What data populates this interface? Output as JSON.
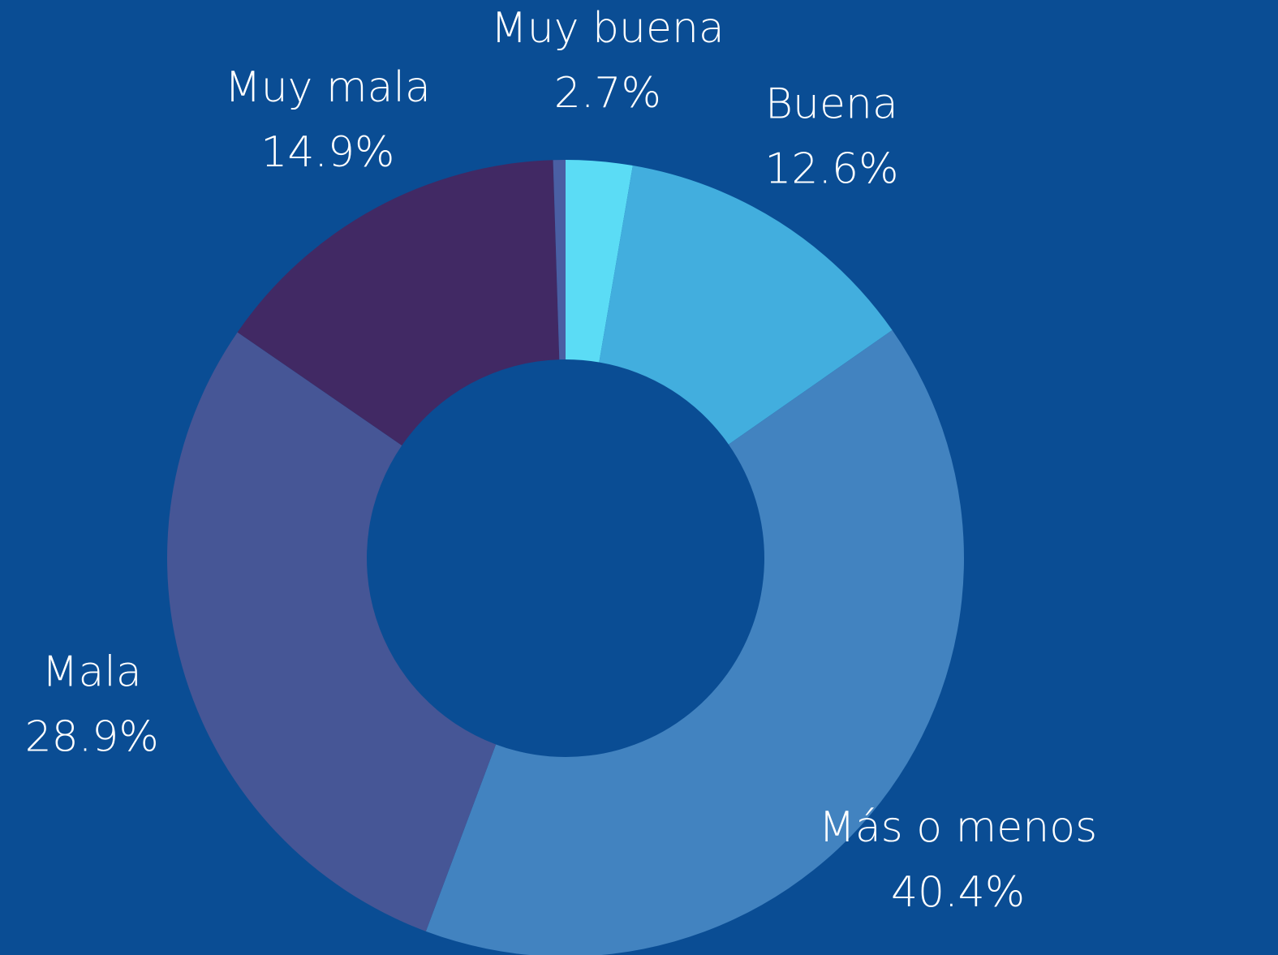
{
  "chart_data": {
    "type": "donut",
    "categories": [
      "Muy buena",
      "Buena",
      "Más o menos",
      "Mala",
      "Muy mala",
      null
    ],
    "values": [
      2.7,
      12.6,
      40.4,
      28.9,
      14.9,
      0.5
    ],
    "value_labels": [
      "2.7%",
      "12.6%",
      "40.4%",
      "28.9%",
      "14.9%",
      null
    ],
    "colors": [
      "#5bdcf5",
      "#42aede",
      "#4283c0",
      "#465696",
      "#412964",
      "#4a5fa3"
    ],
    "background": "#0a4d94"
  }
}
